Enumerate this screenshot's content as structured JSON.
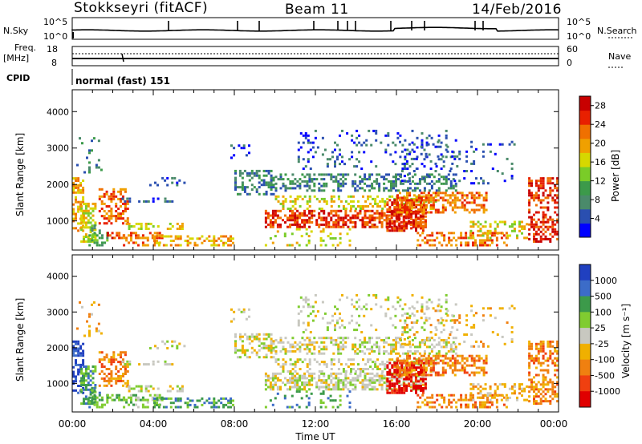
{
  "header": {
    "station": "Stokkseyri (fitACF)",
    "beam": "Beam 11",
    "date": "14/Feb/2016"
  },
  "top_panels": {
    "nsky_label": "N.Sky",
    "nsky_ticks": [
      "10^5",
      "10^0"
    ],
    "nsearch_label": "N.Search",
    "nsearch_ticks": [
      "10^5",
      "10^0"
    ],
    "freq_label": "Freq.",
    "freq_unit": "[MHz]",
    "freq_ticks": [
      "18",
      "8"
    ],
    "nave_label": "Nave",
    "nave_ticks": [
      "60",
      "0"
    ],
    "cpid_label": "CPID",
    "cpid_value": "normal (fast) 151"
  },
  "chart_data": [
    {
      "type": "heatmap",
      "name": "power",
      "ylabel": "Slant Range [km]",
      "y_ticks": [
        1000,
        2000,
        3000,
        4000
      ],
      "ylim": [
        200,
        4600
      ],
      "xlim": [
        0,
        24
      ],
      "colorbar_label": "Power [dB]",
      "colorbar_ticks": [
        4,
        8,
        12,
        16,
        20,
        24,
        28
      ],
      "colorbar_range": [
        0,
        30
      ],
      "colors": [
        "#0000ff",
        "#2a4fb0",
        "#4a8a6a",
        "#3c9a4a",
        "#7acc28",
        "#d6d800",
        "#f0a000",
        "#f07000",
        "#e82000",
        "#c80000"
      ]
    },
    {
      "type": "heatmap",
      "name": "velocity",
      "ylabel": "Slant Range [km]",
      "y_ticks": [
        1000,
        2000,
        3000,
        4000
      ],
      "ylim": [
        200,
        4600
      ],
      "xlim": [
        0,
        24
      ],
      "colorbar_label": "Velocity [m s⁻¹]",
      "colorbar_ticks": [
        "1000",
        "500",
        "100",
        "25",
        "-25",
        "-100",
        "-500",
        "-1000"
      ],
      "colors": [
        "#2040c0",
        "#3c6cc8",
        "#3c9a4a",
        "#80cc30",
        "#c8c8c0",
        "#f0b000",
        "#f08010",
        "#f04010",
        "#e00000"
      ]
    }
  ],
  "x_axis": {
    "ticks": [
      "00:00",
      "04:00",
      "08:00",
      "12:00",
      "16:00",
      "20:00",
      "00:00"
    ],
    "label": "Time UT"
  }
}
